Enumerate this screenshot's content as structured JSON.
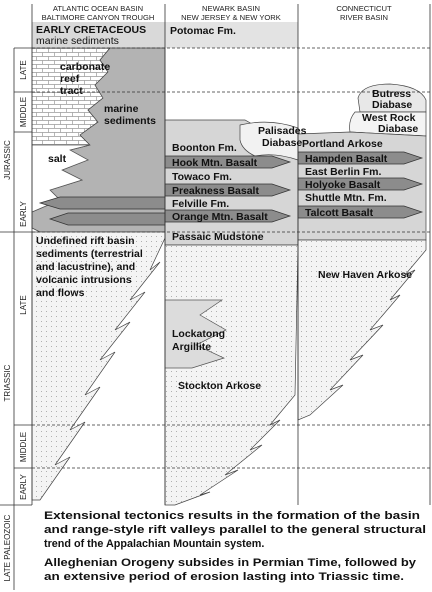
{
  "headers": [
    [
      "ATLANTIC OCEAN BASIN",
      "BALTIMORE CANYON TROUGH"
    ],
    [
      "NEWARK BASIN",
      "NEW JERSEY & NEW YORK"
    ],
    [
      "CONNECTICUT",
      "RIVER BASIN"
    ]
  ],
  "time_scale": [
    "LATE",
    "MIDDLE",
    "JURASSIC",
    "EARLY",
    "LATE",
    "TRIASSIC",
    "MIDDLE",
    "EARLY",
    "LATE PALEOZOIC"
  ],
  "atlantic": {
    "cretaceous": [
      "EARLY CRETACEOUS",
      "marine sediments"
    ],
    "reef": [
      "carbonate",
      "reef",
      "tract"
    ],
    "marine": [
      "marine",
      "sediments"
    ],
    "salt": "salt",
    "rift": [
      "Undefined rift basin",
      "sediments (terrestrial",
      "and lacustrine), and",
      "volcanic intrusions",
      "and flows"
    ]
  },
  "newark": {
    "potomac": "Potomac Fm.",
    "palisades": [
      "Palisades",
      "Diabase"
    ],
    "boonton": "Boonton Fm.",
    "hook": "Hook Mtn. Basalt",
    "towaco": "Towaco Fm.",
    "preakness": "Preakness Basalt",
    "feltville": "Felville Fm.",
    "orange": "Orange Mtn. Basalt",
    "passaic": "Passaic Mudstone",
    "lockatong": [
      "Lockatong",
      "Argillite"
    ],
    "stockton": "Stockton Arkose"
  },
  "connecticut": {
    "butress": [
      "Butress",
      "Diabase"
    ],
    "west_rock": [
      "West Rock",
      "Diabase"
    ],
    "portland": "Portland Arkose",
    "hampden": "Hampden Basalt",
    "east_berlin": "East Berlin Fm.",
    "holyoke": "Holyoke Basalt",
    "shuttle": "Shuttle Mtn. Fm.",
    "talcott": "Talcott Basalt",
    "new_haven": "New Haven Arkose"
  },
  "captions": [
    [
      "Extensional tectonics results in the formation of the basin",
      "and range-style rift valleys parallel to the general structural",
      "trend of the Appalachian Mountain system."
    ],
    [
      "Alleghenian Orogeny subsides in Permian Time, followed by",
      "an extensive period of erosion lasting into Triassic time."
    ]
  ]
}
